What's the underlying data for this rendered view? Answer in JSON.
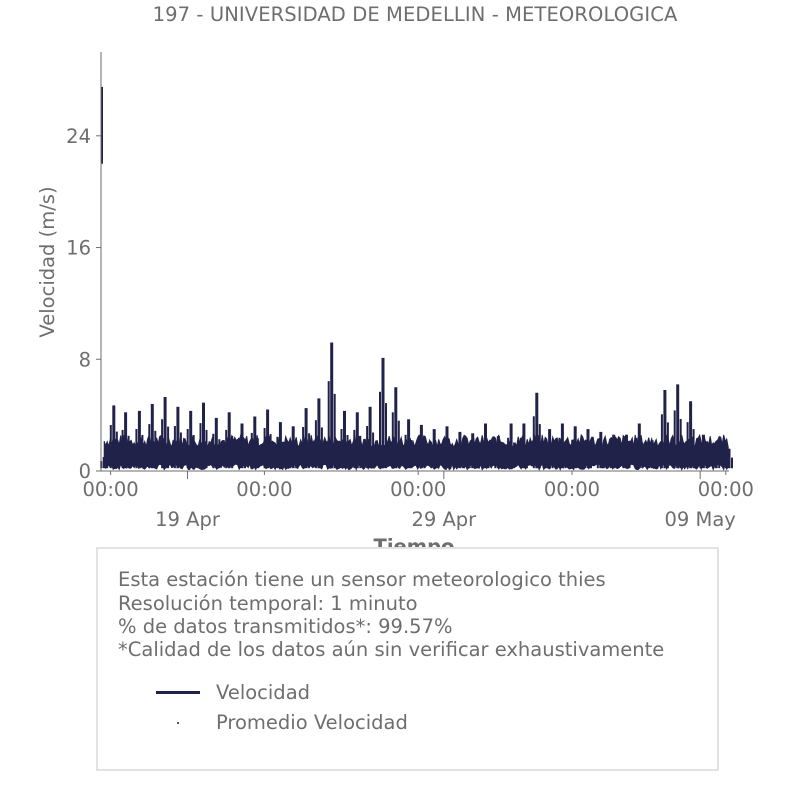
{
  "chart_data": {
    "type": "line",
    "title": "197 - UNIVERSIDAD DE MEDELLIN - METEOROLOGICA",
    "xlabel": "Tiempo",
    "ylabel": "Velocidad (m/s)",
    "ylim": [
      0,
      30
    ],
    "xlim": [
      "2023-04-15T15:00",
      "2023-05-10T03:00"
    ],
    "yticks": [
      0,
      8,
      16,
      24
    ],
    "ytick_labels": [
      "0",
      "8",
      "16",
      "24"
    ],
    "xticks_minor": [
      "2023-04-16T00:00",
      "2023-04-22T00:00",
      "2023-04-28T00:00",
      "2023-05-04T00:00",
      "2023-05-10T00:00"
    ],
    "xtick_minor_labels": [
      "00:00",
      "00:00",
      "00:00",
      "00:00",
      "00:00"
    ],
    "xticks_major": [
      "2023-04-19T00:00",
      "2023-04-29T00:00",
      "2023-05-09T00:00"
    ],
    "xtick_major_labels": [
      "19 Apr",
      "29 Apr",
      "09 May"
    ],
    "grid": false,
    "line_color": "#21224a",
    "series": [
      {
        "name": "Velocidad",
        "x": [
          "2023-04-15T15:00",
          "2023-04-15T16:00",
          "2023-04-15T17:00",
          "2023-04-15T18:00",
          "2023-04-16T03:00",
          "2023-04-16T14:00",
          "2023-04-17T03:00",
          "2023-04-17T15:00",
          "2023-04-18T03:00",
          "2023-04-18T15:00",
          "2023-04-19T03:00",
          "2023-04-19T15:00",
          "2023-04-20T03:00",
          "2023-04-20T15:00",
          "2023-04-21T03:00",
          "2023-04-21T15:00",
          "2023-04-22T03:00",
          "2023-04-22T15:00",
          "2023-04-23T03:00",
          "2023-04-23T15:00",
          "2023-04-24T03:00",
          "2023-04-24T15:00",
          "2023-04-25T03:00",
          "2023-04-25T15:00",
          "2023-04-26T03:00",
          "2023-04-26T15:00",
          "2023-04-27T03:00",
          "2023-04-27T15:00",
          "2023-04-28T03:00",
          "2023-04-28T15:00",
          "2023-04-29T03:00",
          "2023-04-29T15:00",
          "2023-04-30T03:00",
          "2023-04-30T15:00",
          "2023-05-01T03:00",
          "2023-05-01T15:00",
          "2023-05-02T03:00",
          "2023-05-02T15:00",
          "2023-05-03T03:00",
          "2023-05-03T15:00",
          "2023-05-04T03:00",
          "2023-05-04T15:00",
          "2023-05-05T03:00",
          "2023-05-05T15:00",
          "2023-05-06T03:00",
          "2023-05-06T15:00",
          "2023-05-07T03:00",
          "2023-05-07T15:00",
          "2023-05-08T03:00",
          "2023-05-08T15:00",
          "2023-05-09T03:00",
          "2023-05-09T15:00",
          "2023-05-10T03:00"
        ],
        "y": [
          27.5,
          22.0,
          2.5,
          1.0,
          4.7,
          4.2,
          4.3,
          4.8,
          5.3,
          4.6,
          4.3,
          4.9,
          3.8,
          4.2,
          3.4,
          3.9,
          4.4,
          3.5,
          3.2,
          4.5,
          5.2,
          9.2,
          4.3,
          4.2,
          4.6,
          8.1,
          6.0,
          3.7,
          3.3,
          3.0,
          3.2,
          2.8,
          2.7,
          3.4,
          2.5,
          3.4,
          3.4,
          5.6,
          3.0,
          3.4,
          3.2,
          3.0,
          2.8,
          2.6,
          2.6,
          3.4,
          2.2,
          5.8,
          6.2,
          5.0,
          2.6,
          2.1,
          1.6
        ]
      },
      {
        "name": "Promedio Velocidad",
        "x": [],
        "y": []
      }
    ]
  },
  "info": {
    "line1": "Esta estación tiene un sensor meteorologico thies",
    "line2": "Resolución temporal: 1 minuto",
    "line3": "% de datos transmitidos*: 99.57%",
    "line4": "*Calidad de los datos aún sin verificar exhaustivamente"
  },
  "legend": {
    "items": [
      {
        "label": "Velocidad",
        "marker": "line"
      },
      {
        "label": "Promedio Velocidad",
        "marker": "dot"
      }
    ]
  }
}
